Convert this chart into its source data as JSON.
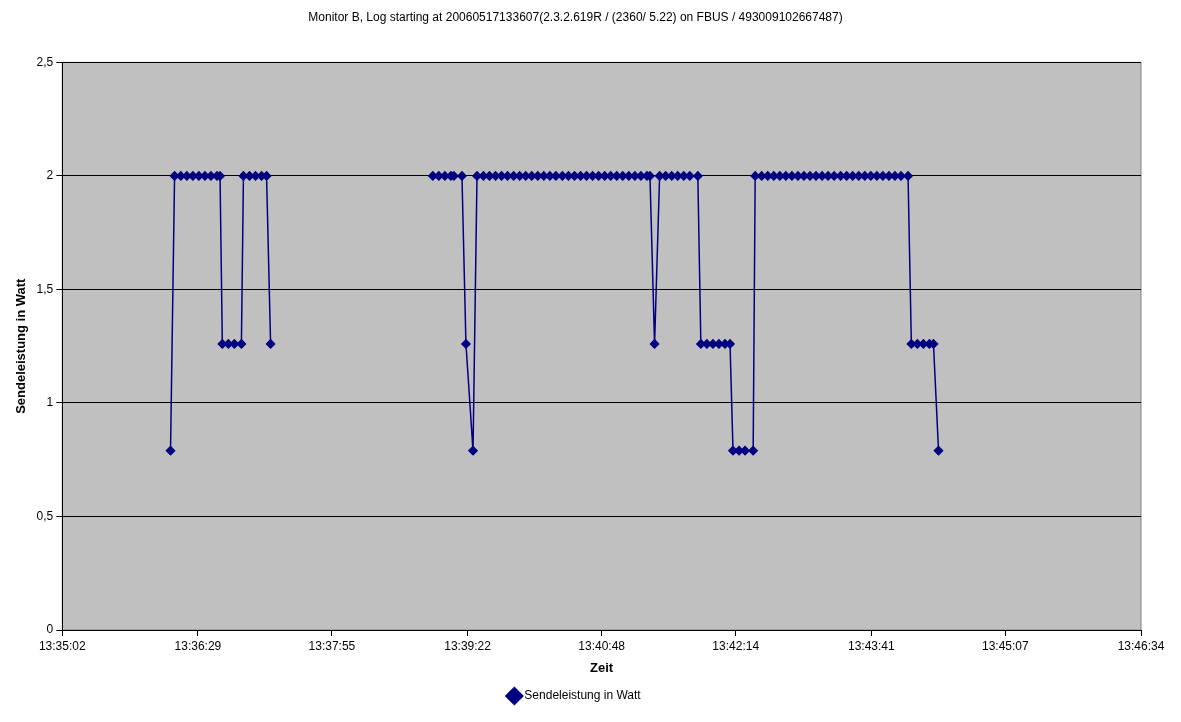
{
  "chart_data": {
    "type": "line",
    "title": "Monitor B, Log starting at 20060517133607(2.3.2.619R / (2360/ 5.22) on FBUS / 493009102667487)",
    "xlabel": "Zeit",
    "ylabel": "Sendeleistung in Watt",
    "x": [
      13.60318,
      13.6039,
      13.60501,
      13.60608,
      13.60716,
      13.60823,
      13.60931,
      13.61038,
      13.61146,
      13.612,
      13.61241,
      13.61348,
      13.61456,
      13.61581,
      13.61617,
      13.61725,
      13.61832,
      13.6194,
      13.62029,
      13.62101,
      13.635,
      13.64991,
      13.65098,
      13.65206,
      13.65314,
      13.65367,
      13.65511,
      13.65582,
      13.65708,
      13.65779,
      13.65894,
      13.66001,
      13.66109,
      13.66216,
      13.66324,
      13.66432,
      13.66539,
      13.66647,
      13.66754,
      13.66862,
      13.66969,
      13.67077,
      13.67184,
      13.67301,
      13.67409,
      13.67516,
      13.67624,
      13.67731,
      13.67839,
      13.67946,
      13.68054,
      13.68161,
      13.68269,
      13.68376,
      13.68484,
      13.68592,
      13.68699,
      13.68807,
      13.68861,
      13.68943,
      13.69033,
      13.6914,
      13.69248,
      13.69355,
      13.69463,
      13.6957,
      13.69714,
      13.69768,
      13.69875,
      13.69983,
      13.7009,
      13.70198,
      13.70288,
      13.70341,
      13.70449,
      13.70556,
      13.707,
      13.70736,
      13.70852,
      13.7096,
      13.71067,
      13.71175,
      13.71282,
      13.7139,
      13.71498,
      13.71605,
      13.71713,
      13.7182,
      13.71928,
      13.72035,
      13.72143,
      13.72258,
      13.72366,
      13.72473,
      13.72581,
      13.72689,
      13.72796,
      13.72904,
      13.73011,
      13.73119,
      13.73226,
      13.73334,
      13.7346,
      13.73519,
      13.73626,
      13.73734,
      13.73841,
      13.73913,
      13.74003
    ],
    "series": [
      {
        "name": "Sendeleistung in Watt",
        "color": "#000080",
        "values": [
          0.79,
          2,
          2,
          2,
          2,
          2,
          2,
          2,
          2,
          2,
          1.26,
          1.26,
          1.26,
          1.26,
          2,
          2,
          2,
          2,
          2,
          1.26,
          null,
          2,
          2,
          2,
          2,
          2,
          2,
          1.26,
          0.79,
          2,
          2,
          2,
          2,
          2,
          2,
          2,
          2,
          2,
          2,
          2,
          2,
          2,
          2,
          2,
          2,
          2,
          2,
          2,
          2,
          2,
          2,
          2,
          2,
          2,
          2,
          2,
          2,
          2,
          2,
          1.26,
          2,
          2,
          2,
          2,
          2,
          2,
          2,
          1.26,
          1.26,
          1.26,
          1.26,
          1.26,
          1.26,
          0.79,
          0.79,
          0.79,
          0.79,
          2,
          2,
          2,
          2,
          2,
          2,
          2,
          2,
          2,
          2,
          2,
          2,
          2,
          2,
          2,
          2,
          2,
          2,
          2,
          2,
          2,
          2,
          2,
          2,
          2,
          2,
          1.26,
          1.26,
          1.26,
          1.26,
          1.26,
          0.79
        ]
      }
    ],
    "xlim": [
      13.58389,
      13.77611
    ],
    "xticks": [
      {
        "value": 13.58389,
        "label": "13:35:02"
      },
      {
        "value": 13.60806,
        "label": "13:36:29"
      },
      {
        "value": 13.63194,
        "label": "13:37:55"
      },
      {
        "value": 13.65611,
        "label": "13:39:22"
      },
      {
        "value": 13.68,
        "label": "13:40:48"
      },
      {
        "value": 13.70389,
        "label": "13:42:14"
      },
      {
        "value": 13.72806,
        "label": "13:43:41"
      },
      {
        "value": 13.75194,
        "label": "13:45:07"
      },
      {
        "value": 13.77611,
        "label": "13:46:34"
      }
    ],
    "ylim": [
      0,
      2.5
    ],
    "yticks": [
      0,
      {
        "value": 0.5,
        "label": "0,5"
      },
      1,
      {
        "value": 1.5,
        "label": "1,5"
      },
      2,
      {
        "value": 2.5,
        "label": "2,5"
      }
    ],
    "grid": "y",
    "legend": "bottom",
    "marker": "diamond"
  }
}
